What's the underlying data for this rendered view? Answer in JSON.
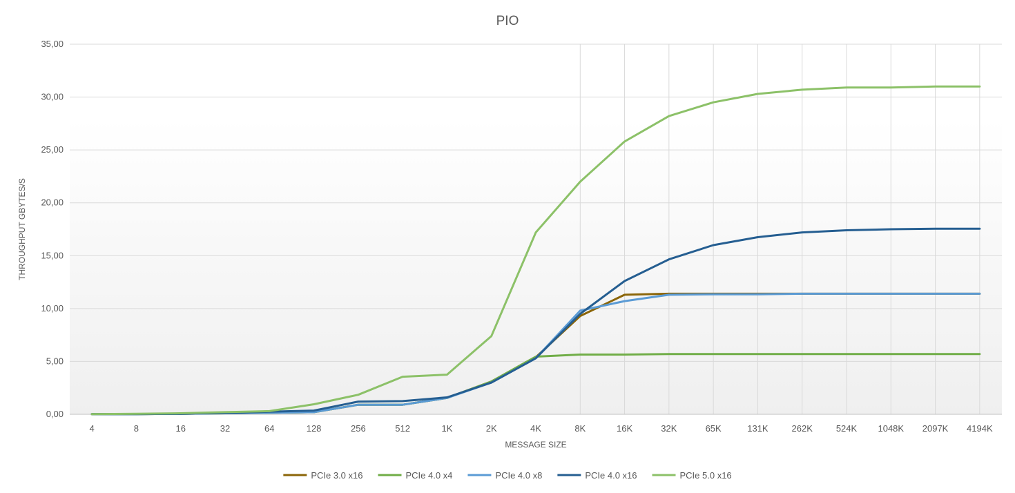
{
  "chart_data": {
    "type": "line",
    "title": "PIO",
    "xlabel": "MESSAGE SIZE",
    "ylabel": "THROUGHPUT GBYTES/S",
    "categories": [
      "4",
      "8",
      "16",
      "32",
      "64",
      "128",
      "256",
      "512",
      "1K",
      "2K",
      "4K",
      "8K",
      "16K",
      "32K",
      "65K",
      "131K",
      "262K",
      "524K",
      "1048K",
      "2097K",
      "4194K"
    ],
    "y_ticks": [
      "0,00",
      "5,00",
      "10,00",
      "15,00",
      "20,00",
      "25,00",
      "30,00",
      "35,00"
    ],
    "ylim": [
      0,
      35
    ],
    "y_step": 5,
    "grid": "horizontal, vertical from 8K",
    "legend_position": "bottom",
    "series": [
      {
        "name": "PCIe 3.0 x16",
        "color": "#8B6508",
        "values": [
          0.01,
          0.02,
          0.05,
          0.1,
          0.15,
          0.2,
          0.9,
          0.9,
          1.55,
          3.1,
          5.4,
          9.3,
          11.3,
          11.4,
          11.4,
          11.4,
          11.4,
          11.4,
          11.4,
          11.4,
          11.4
        ]
      },
      {
        "name": "PCIe 4.0 x4",
        "color": "#70AD47",
        "values": [
          0.01,
          0.02,
          0.05,
          0.1,
          0.15,
          0.2,
          0.9,
          0.9,
          1.55,
          3.1,
          5.45,
          5.65,
          5.65,
          5.7,
          5.7,
          5.7,
          5.7,
          5.7,
          5.7,
          5.7,
          5.7
        ]
      },
      {
        "name": "PCIe 4.0 x8",
        "color": "#5B9BD5",
        "values": [
          0.01,
          0.02,
          0.05,
          0.1,
          0.15,
          0.2,
          0.9,
          0.9,
          1.55,
          3.0,
          5.3,
          9.8,
          10.7,
          11.3,
          11.35,
          11.35,
          11.4,
          11.4,
          11.4,
          11.4,
          11.4
        ]
      },
      {
        "name": "PCIe 4.0 x16",
        "color": "#255E91",
        "values": [
          0.01,
          0.02,
          0.05,
          0.12,
          0.25,
          0.35,
          1.2,
          1.25,
          1.6,
          3.0,
          5.3,
          9.5,
          12.6,
          14.65,
          16.0,
          16.75,
          17.2,
          17.4,
          17.5,
          17.55,
          17.55
        ]
      },
      {
        "name": "PCIe 5.0 x16",
        "color": "#8CC168",
        "values": [
          0.01,
          0.05,
          0.1,
          0.2,
          0.3,
          0.95,
          1.85,
          3.55,
          3.75,
          7.4,
          17.2,
          22.0,
          25.8,
          28.2,
          29.5,
          30.3,
          30.7,
          30.9,
          30.9,
          31.0,
          31.0
        ]
      }
    ]
  }
}
